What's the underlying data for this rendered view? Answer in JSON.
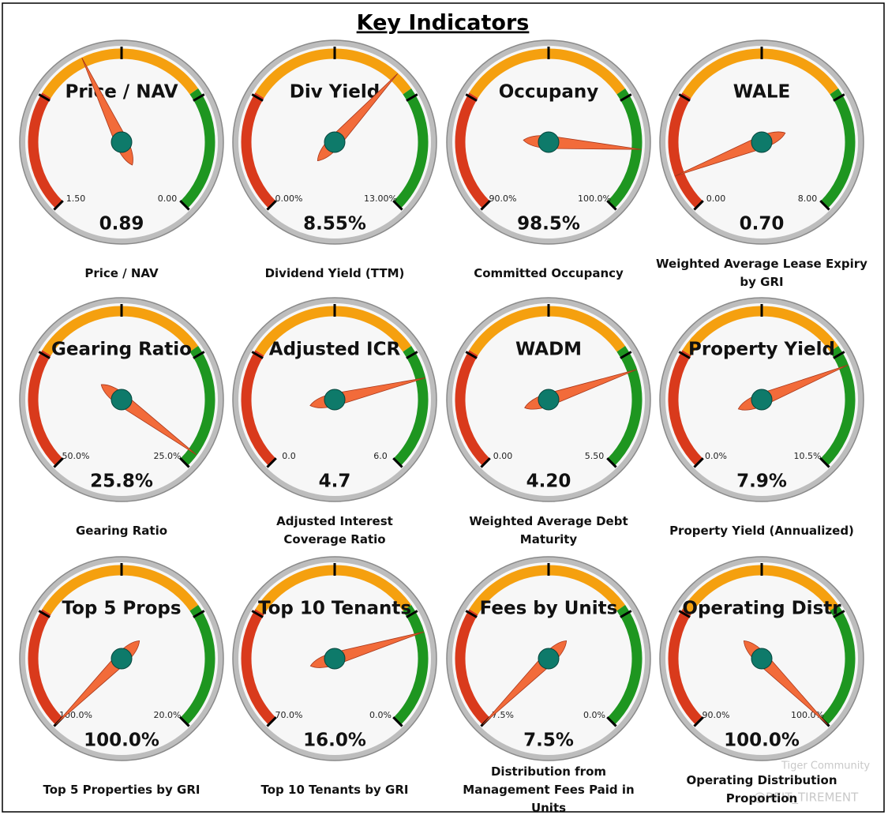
{
  "title": "Key Indicators",
  "chart_data": [
    {
      "type": "gauge",
      "title": "Price / NAV",
      "ylim": [
        1.5,
        0
      ],
      "yticks": [
        {
          "value": 1.5,
          "label": "1.50"
        },
        {
          "value": 0,
          "label": "0.00"
        }
      ],
      "value": 0.89,
      "caption": "Price / NAV"
    },
    {
      "type": "gauge",
      "title": "Div Yield",
      "ylim": [
        0,
        13
      ],
      "yticks": [
        {
          "value": 0,
          "label": "0.00%"
        },
        {
          "value": 13,
          "label": "13.00%"
        }
      ],
      "value": 8.55,
      "value_label": "8.55%",
      "caption": "Dividend Yield (TTM)"
    },
    {
      "type": "gauge",
      "title": "Occupany",
      "ylim": [
        90,
        100
      ],
      "yticks": [
        {
          "value": 90,
          "label": "90.0%"
        },
        {
          "value": 100,
          "label": "100.0%"
        }
      ],
      "value": 98.5,
      "value_label": "98.5%",
      "caption": "Committed Occupancy"
    },
    {
      "type": "gauge",
      "title": "WALE",
      "ylim": [
        0,
        8
      ],
      "yticks": [
        {
          "value": 0,
          "label": "0.00"
        },
        {
          "value": 8,
          "label": "8.00"
        }
      ],
      "value": 0.7,
      "value_label": "0.70",
      "caption": "Weighted Average Lease Expiry by GRI"
    },
    {
      "type": "gauge",
      "title": "Gearing Ratio",
      "ylim": [
        50,
        25
      ],
      "yticks": [
        {
          "value": 50,
          "label": "50.0%"
        },
        {
          "value": 25,
          "label": "25.0%"
        }
      ],
      "value": 25.8,
      "value_label": "25.8%",
      "caption": "Gearing Ratio"
    },
    {
      "type": "gauge",
      "title": "Adjusted ICR",
      "ylim": [
        0,
        6
      ],
      "yticks": [
        {
          "value": 0,
          "label": "0.0"
        },
        {
          "value": 6,
          "label": "6.0"
        }
      ],
      "value": 4.7,
      "caption": "Adjusted Interest Coverage Ratio"
    },
    {
      "type": "gauge",
      "title": "WADM",
      "ylim": [
        0,
        5.5
      ],
      "yticks": [
        {
          "value": 0,
          "label": "0.00"
        },
        {
          "value": 5.5,
          "label": "5.50"
        }
      ],
      "value": 4.2,
      "value_label": "4.20",
      "caption": "Weighted Average Debt Maturity"
    },
    {
      "type": "gauge",
      "title": "Property Yield",
      "ylim": [
        0,
        10.5
      ],
      "yticks": [
        {
          "value": 0,
          "label": "0.0%"
        },
        {
          "value": 10.5,
          "label": "10.5%"
        }
      ],
      "value": 7.9,
      "value_label": "7.9%",
      "caption": "Property Yield (Annualized)"
    },
    {
      "type": "gauge",
      "title": "Top 5 Props",
      "ylim": [
        100,
        20
      ],
      "yticks": [
        {
          "value": 100,
          "label": "100.0%"
        },
        {
          "value": 20,
          "label": "20.0%"
        }
      ],
      "value": 100,
      "value_label": "100.0%",
      "caption": "Top 5 Properties by GRI"
    },
    {
      "type": "gauge",
      "title": "Top 10 Tenants",
      "ylim": [
        70,
        0
      ],
      "yticks": [
        {
          "value": 70,
          "label": "70.0%"
        },
        {
          "value": 0,
          "label": "0.0%"
        }
      ],
      "value": 16,
      "value_label": "16.0%",
      "caption": "Top 10 Tenants by GRI"
    },
    {
      "type": "gauge",
      "title": "Fees by Units",
      "ylim": [
        7.5,
        0
      ],
      "yticks": [
        {
          "value": 7.5,
          "label": "7.5%"
        },
        {
          "value": 0,
          "label": "0.0%"
        }
      ],
      "value": 7.5,
      "value_label": "7.5%",
      "caption": "Distribution from Management Fees Paid in Units"
    },
    {
      "type": "gauge",
      "title": "Operating Distr",
      "ylim": [
        90,
        100
      ],
      "yticks": [
        {
          "value": 90,
          "label": "90.0%"
        },
        {
          "value": 100,
          "label": "100.0%"
        }
      ],
      "value": 100,
      "value_label": "100.0%",
      "caption": "Operating Distribution Proportion"
    }
  ],
  "watermark": [
    "Tiger Community",
    "@REIT_TIREMENT"
  ]
}
